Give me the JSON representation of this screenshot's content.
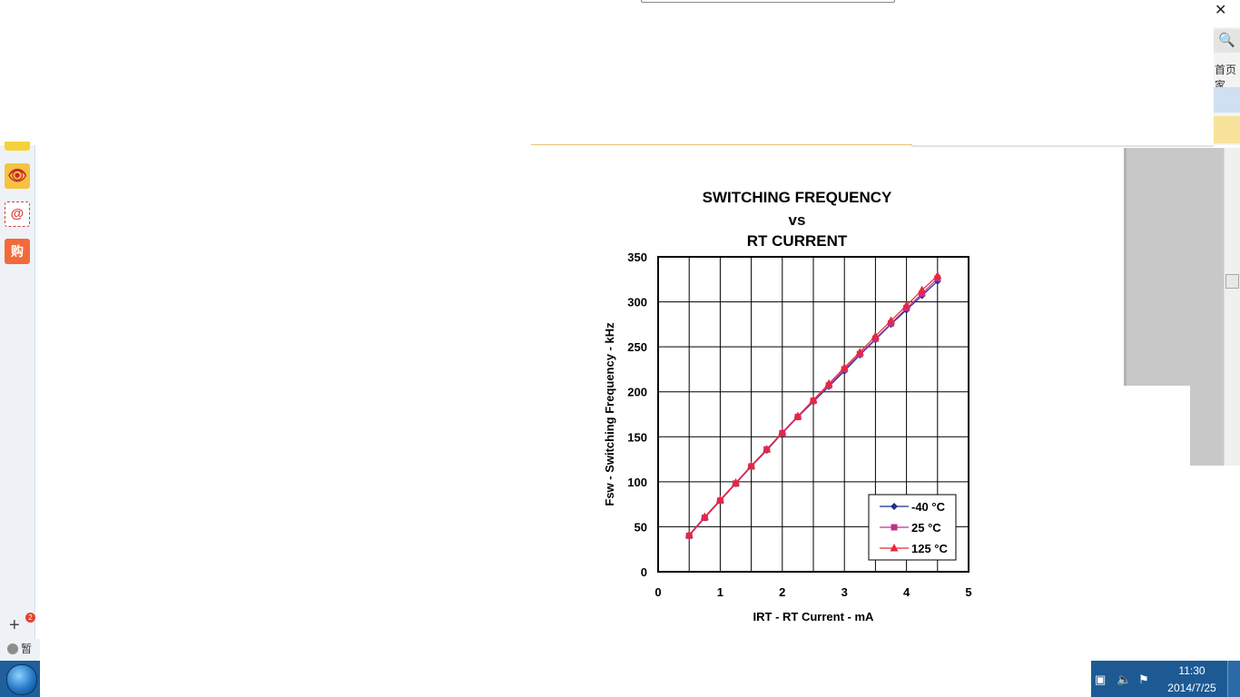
{
  "browser": {
    "close_glyph": "✕",
    "search_glyph": "🔍",
    "home_text": "首页家"
  },
  "sidebar": {
    "weibo_glyph": "👁",
    "mail_glyph": "@",
    "shop_glyph": "购",
    "add_glyph": "+",
    "badge_count": "2",
    "weather_text": "暂无"
  },
  "chart_title_lines": [
    "SWITCHING FREQUENCY",
    "vs",
    "RT CURRENT"
  ],
  "chart_data": {
    "type": "line",
    "xlabel": "IRT - RT Current - mA",
    "ylabel": "Fsw - Switching Frequency - kHz",
    "xlim": [
      0,
      5
    ],
    "ylim": [
      0,
      350
    ],
    "x_ticks": [
      "0",
      "1",
      "2",
      "3",
      "4",
      "5"
    ],
    "y_ticks": [
      "0",
      "50",
      "100",
      "150",
      "200",
      "250",
      "300",
      "350"
    ],
    "grid": true,
    "legend_position": "bottom-right",
    "x": [
      0.5,
      0.75,
      1.0,
      1.25,
      1.5,
      1.75,
      2.0,
      2.25,
      2.5,
      2.75,
      3.0,
      3.25,
      3.5,
      3.75,
      4.0,
      4.25,
      4.5
    ],
    "series": [
      {
        "name": "-40 °C",
        "color": "#1f2e8f",
        "marker": "diamond",
        "values": [
          40,
          60,
          79,
          98,
          117,
          135,
          154,
          172,
          189,
          206,
          223,
          241,
          258,
          275,
          291,
          307,
          323
        ]
      },
      {
        "name": "25 °C",
        "color": "#c0308a",
        "marker": "square",
        "values": [
          40,
          60,
          79,
          98,
          117,
          136,
          154,
          172,
          190,
          207,
          225,
          242,
          259,
          276,
          293,
          309,
          326
        ]
      },
      {
        "name": "125 °C",
        "color": "#e8283a",
        "marker": "triangle",
        "values": [
          41,
          61,
          80,
          99,
          118,
          136,
          155,
          173,
          191,
          209,
          227,
          244,
          262,
          279,
          296,
          313,
          329
        ]
      }
    ]
  },
  "taskbar": {
    "time": "11:30",
    "date": "2014/7/25"
  }
}
